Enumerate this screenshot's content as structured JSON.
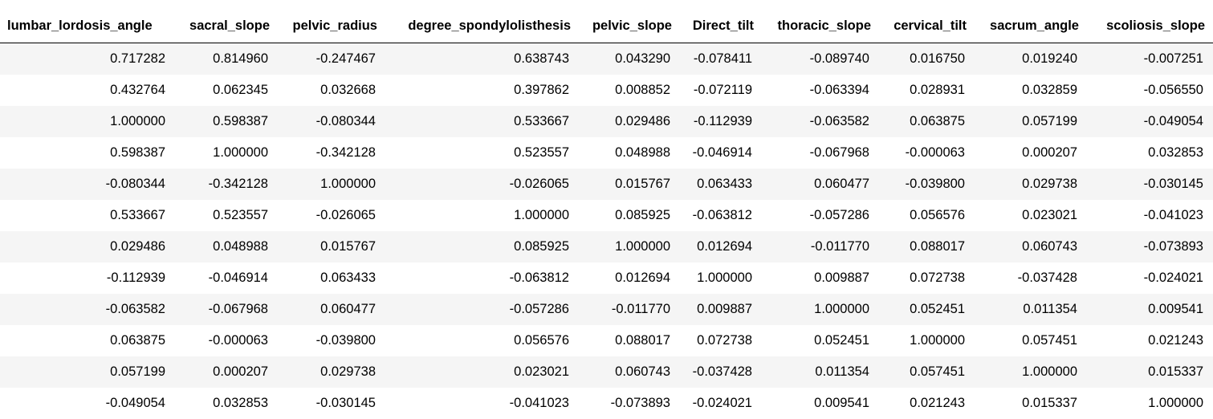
{
  "table": {
    "columns": [
      "lumbar_lordosis_angle",
      "sacral_slope",
      "pelvic_radius",
      "degree_spondylolisthesis",
      "pelvic_slope",
      "Direct_tilt",
      "thoracic_slope",
      "cervical_tilt",
      "sacrum_angle",
      "scoliosis_slope"
    ],
    "rows": [
      [
        "0.717282",
        "0.814960",
        "-0.247467",
        "0.638743",
        "0.043290",
        "-0.078411",
        "-0.089740",
        "0.016750",
        "0.019240",
        "-0.007251"
      ],
      [
        "0.432764",
        "0.062345",
        "0.032668",
        "0.397862",
        "0.008852",
        "-0.072119",
        "-0.063394",
        "0.028931",
        "0.032859",
        "-0.056550"
      ],
      [
        "1.000000",
        "0.598387",
        "-0.080344",
        "0.533667",
        "0.029486",
        "-0.112939",
        "-0.063582",
        "0.063875",
        "0.057199",
        "-0.049054"
      ],
      [
        "0.598387",
        "1.000000",
        "-0.342128",
        "0.523557",
        "0.048988",
        "-0.046914",
        "-0.067968",
        "-0.000063",
        "0.000207",
        "0.032853"
      ],
      [
        "-0.080344",
        "-0.342128",
        "1.000000",
        "-0.026065",
        "0.015767",
        "0.063433",
        "0.060477",
        "-0.039800",
        "0.029738",
        "-0.030145"
      ],
      [
        "0.533667",
        "0.523557",
        "-0.026065",
        "1.000000",
        "0.085925",
        "-0.063812",
        "-0.057286",
        "0.056576",
        "0.023021",
        "-0.041023"
      ],
      [
        "0.029486",
        "0.048988",
        "0.015767",
        "0.085925",
        "1.000000",
        "0.012694",
        "-0.011770",
        "0.088017",
        "0.060743",
        "-0.073893"
      ],
      [
        "-0.112939",
        "-0.046914",
        "0.063433",
        "-0.063812",
        "0.012694",
        "1.000000",
        "0.009887",
        "0.072738",
        "-0.037428",
        "-0.024021"
      ],
      [
        "-0.063582",
        "-0.067968",
        "0.060477",
        "-0.057286",
        "-0.011770",
        "0.009887",
        "1.000000",
        "0.052451",
        "0.011354",
        "0.009541"
      ],
      [
        "0.063875",
        "-0.000063",
        "-0.039800",
        "0.056576",
        "0.088017",
        "0.072738",
        "0.052451",
        "1.000000",
        "0.057451",
        "0.021243"
      ],
      [
        "0.057199",
        "0.000207",
        "0.029738",
        "0.023021",
        "0.060743",
        "-0.037428",
        "0.011354",
        "0.057451",
        "1.000000",
        "0.015337"
      ],
      [
        "-0.049054",
        "0.032853",
        "-0.030145",
        "-0.041023",
        "-0.073893",
        "-0.024021",
        "0.009541",
        "0.021243",
        "0.015337",
        "1.000000"
      ]
    ]
  },
  "colors": {
    "stripe_odd": "#f5f5f5",
    "stripe_even": "#ffffff",
    "header_rule": "#000000",
    "text": "#000000"
  }
}
